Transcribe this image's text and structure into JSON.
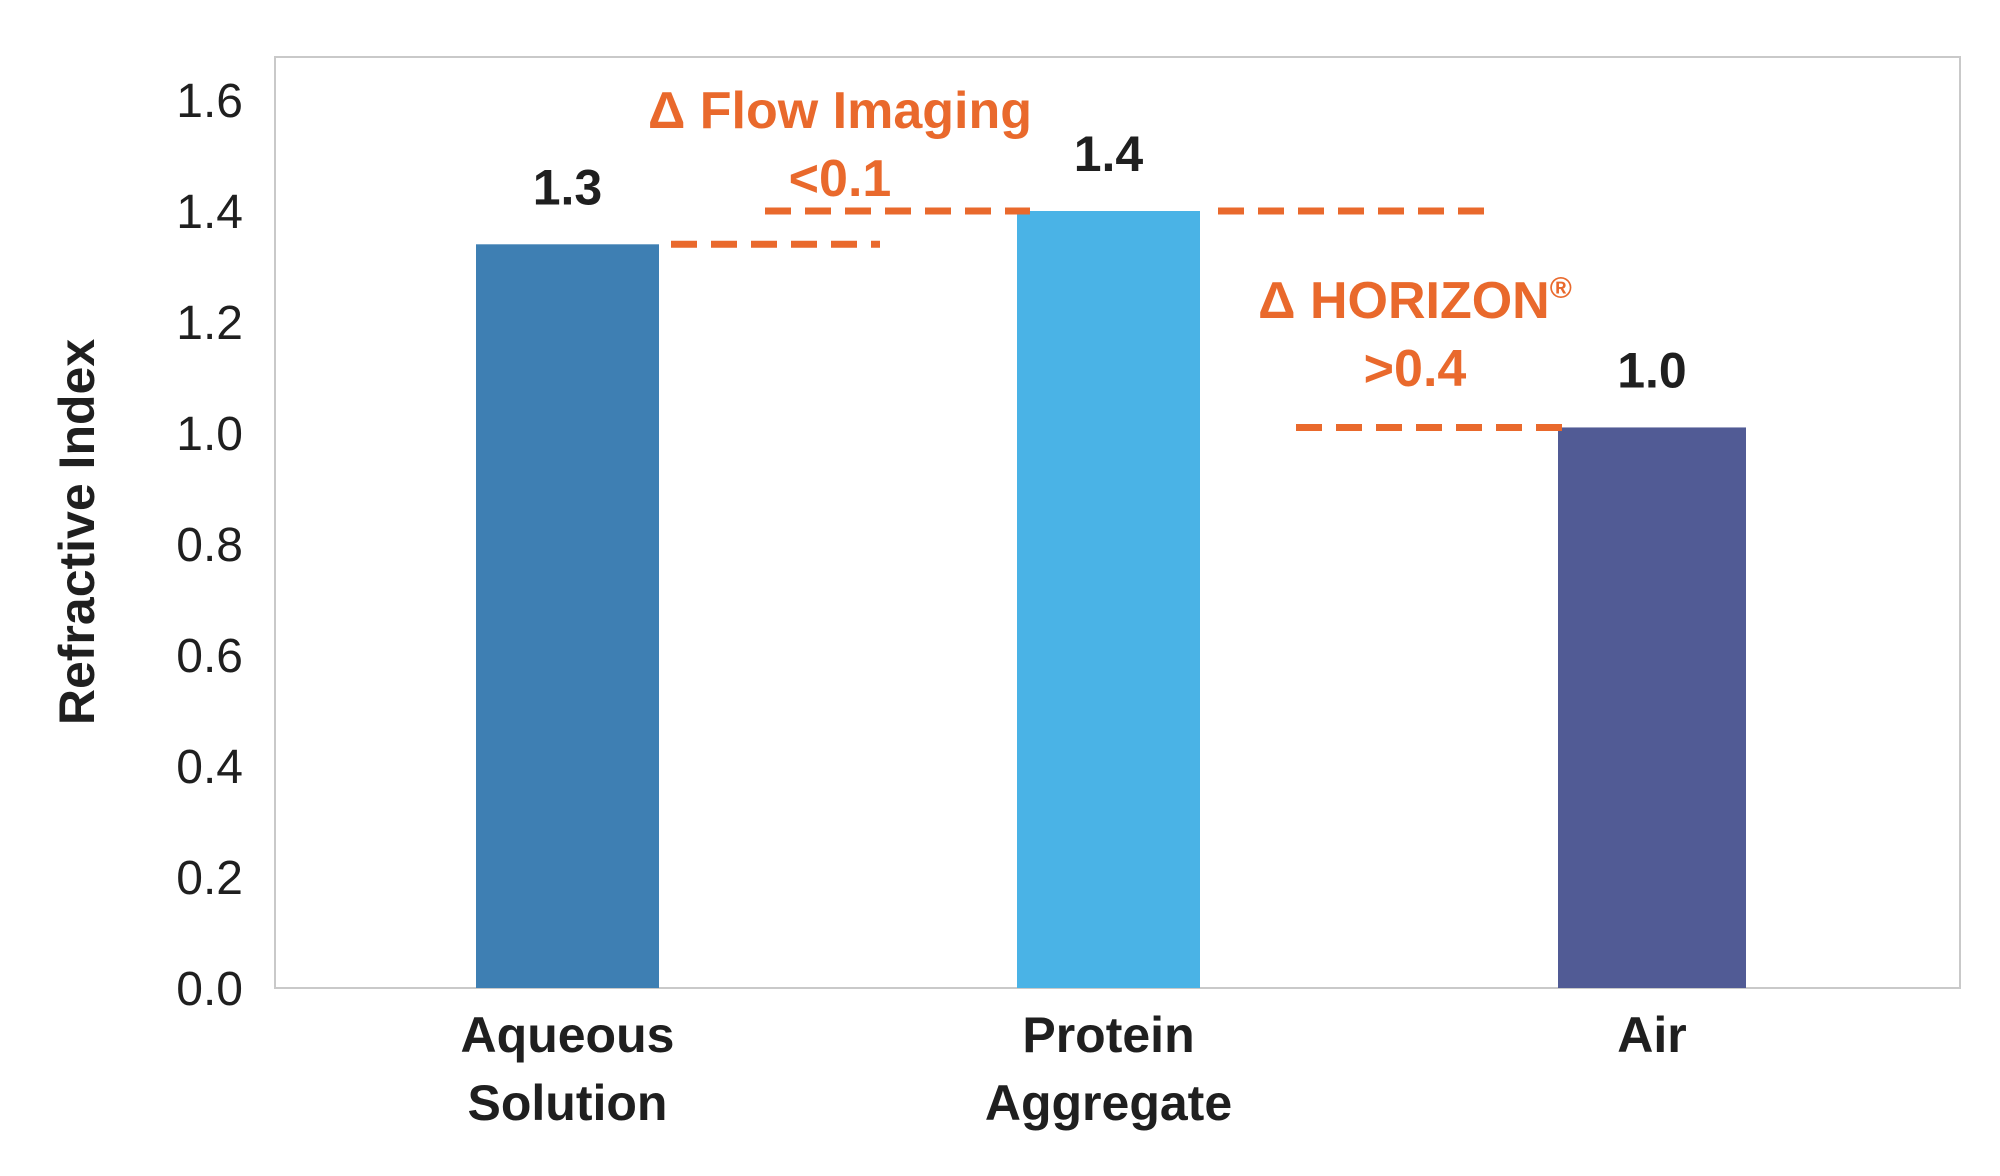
{
  "chart_data": {
    "type": "bar",
    "categories": [
      [
        "Aqueous",
        "Solution"
      ],
      [
        "Protein",
        "Aggregate"
      ],
      [
        "Air"
      ]
    ],
    "values": [
      1.34,
      1.4,
      1.01
    ],
    "value_labels": [
      "1.3",
      "1.4",
      "1.0"
    ],
    "bar_colors": [
      "#3e7fb3",
      "#4ab3e6",
      "#515b95"
    ],
    "ylabel": "Refractive Index",
    "xlabel": "",
    "ylim": [
      0,
      1.68
    ],
    "yticks": [
      "0.0",
      "0.2",
      "0.4",
      "0.6",
      "0.8",
      "1.0",
      "1.2",
      "1.4",
      "1.6"
    ],
    "grid": false,
    "annotations": [
      {
        "name": "flow-imaging",
        "lines": [
          "Δ Flow Imaging",
          "<0.1"
        ],
        "superscript": ""
      },
      {
        "name": "horizon",
        "lines": [
          "Δ HORIZON",
          ">0.4"
        ],
        "superscript": "®"
      }
    ],
    "reference_lines": [
      {
        "name": "aqueous-level",
        "y": 1.34
      },
      {
        "name": "protein-level",
        "y": 1.4
      },
      {
        "name": "air-level",
        "y": 1.01
      }
    ],
    "annotation_color": "#e9692c",
    "frame_color": "#c9c9c9"
  }
}
